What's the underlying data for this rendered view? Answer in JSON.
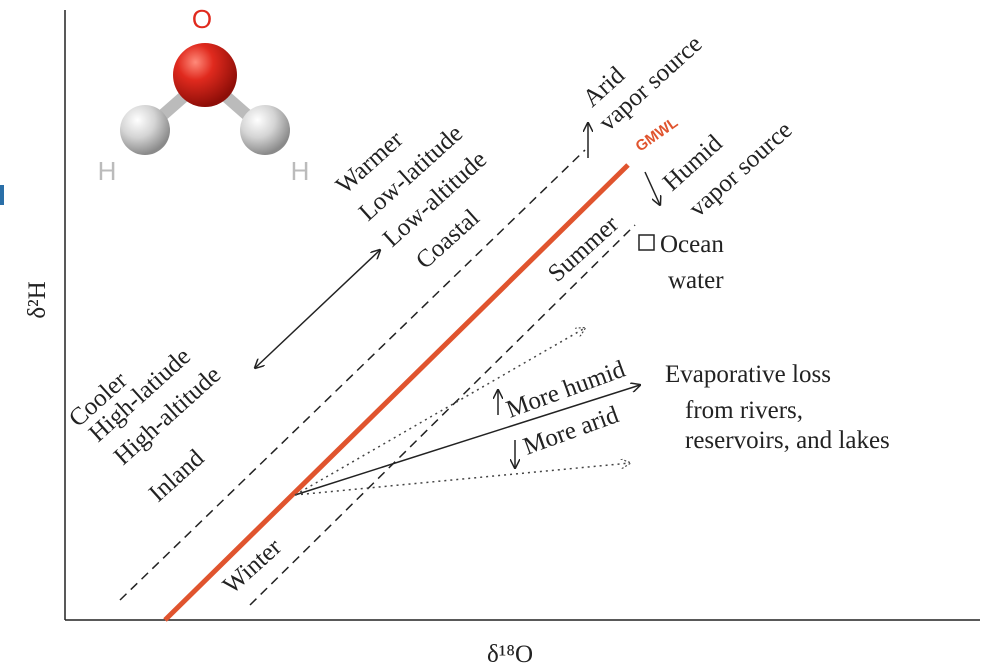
{
  "molecule": {
    "oxygen": "O",
    "hydrogen_left": "H",
    "hydrogen_right": "H"
  },
  "axes": {
    "y_label": "δ²H",
    "x_label": "δ¹⁸O"
  },
  "warm_side": [
    "Warmer",
    "Low-latitude",
    "Low-altitude",
    "Coastal"
  ],
  "cool_side": [
    "Cooler",
    "High-latiude",
    "High-altitude",
    "Inland"
  ],
  "arid_source": [
    "Arid",
    "vapor source"
  ],
  "gmwl": "GMWL",
  "humid_source": [
    "Humid",
    "vapor source"
  ],
  "seasons": {
    "summer": "Summer",
    "winter": "Winter"
  },
  "ocean": [
    "Ocean",
    "water"
  ],
  "humidity": {
    "more_humid": "More humid",
    "more_arid": "More arid"
  },
  "evaporation": [
    "Evaporative loss",
    "from rivers,",
    "reservoirs, and lakes"
  ]
}
